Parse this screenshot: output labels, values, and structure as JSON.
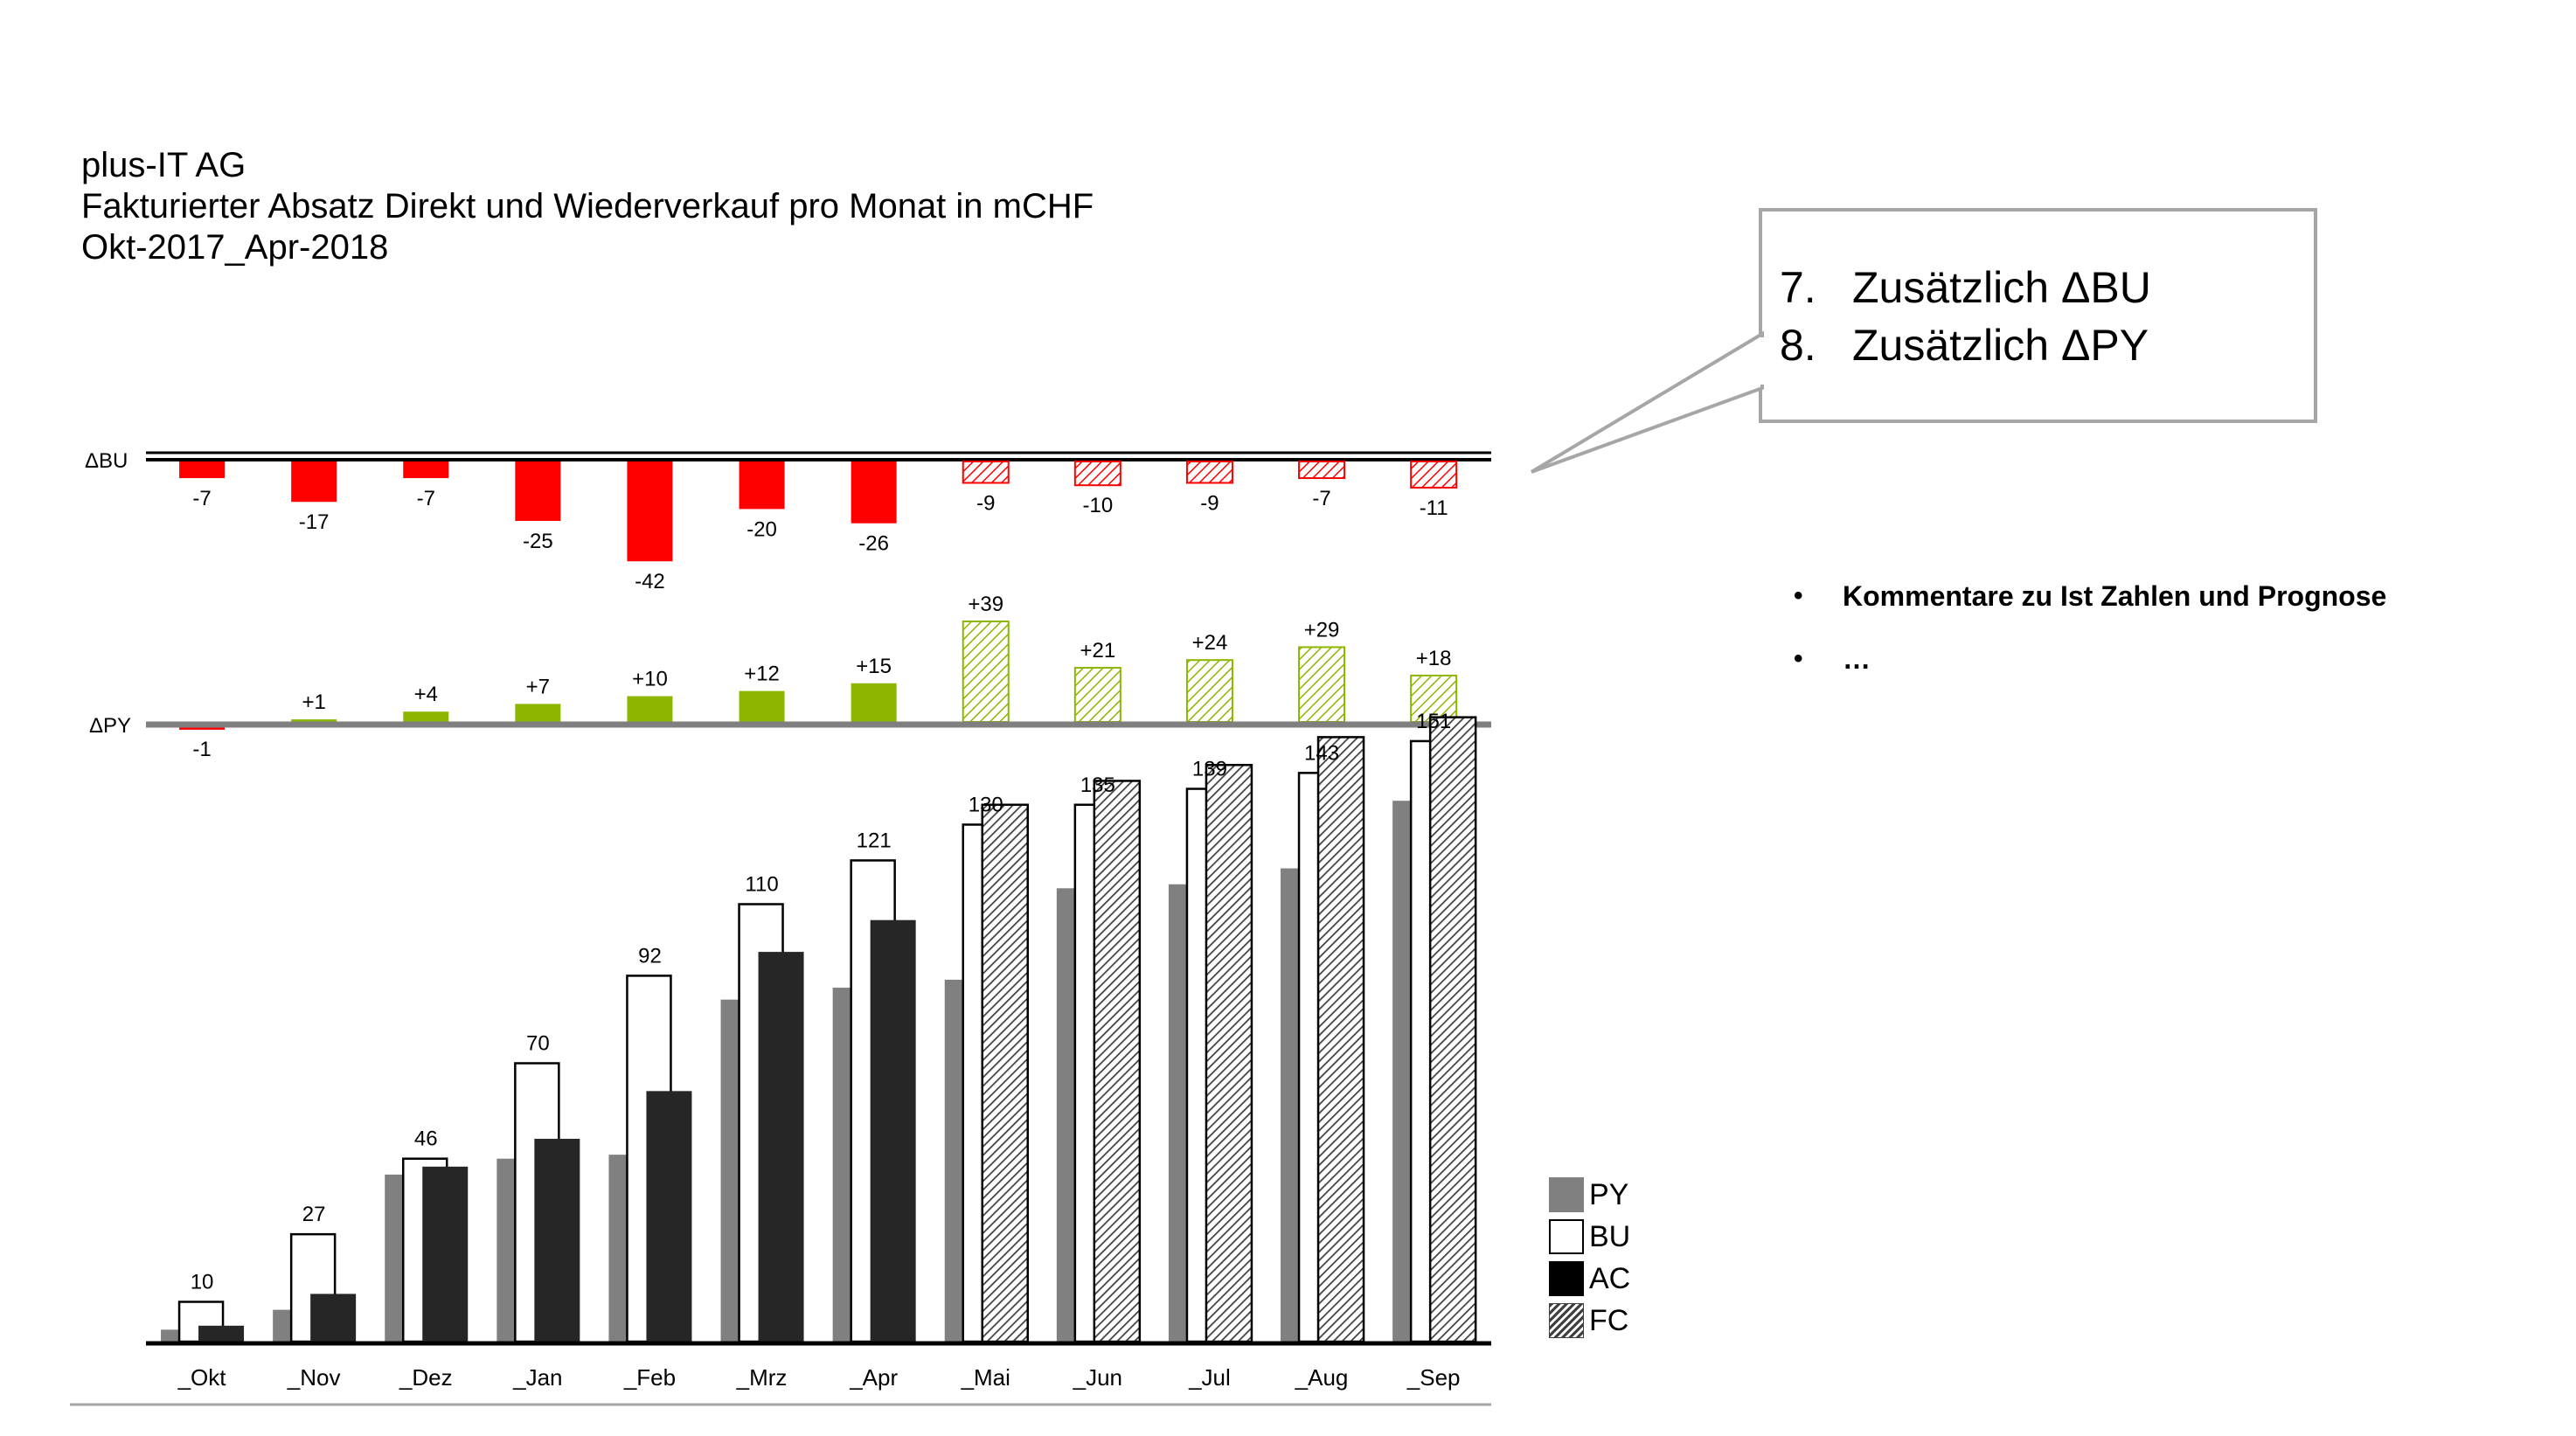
{
  "header": {
    "company": "plus-IT AG",
    "title_main": "Fakturierter Absatz Direkt und Wiederverkauf pro Monat",
    "title_unit": " in mCHF",
    "period": "Okt-2017_Apr-2018"
  },
  "callout": {
    "items": [
      {
        "num": "7.",
        "text": "Zusätzlich ΔBU"
      },
      {
        "num": "8.",
        "text": "Zusätzlich ΔPY"
      }
    ]
  },
  "comments": {
    "items": [
      {
        "bullet": "•",
        "text": "Kommentare zu Ist Zahlen und Prognose"
      },
      {
        "bullet": "•",
        "text": "…"
      }
    ]
  },
  "legend": [
    {
      "label": "PY",
      "style": "solid",
      "color": "#808080"
    },
    {
      "label": "BU",
      "style": "outline",
      "color": "#ffffff"
    },
    {
      "label": "AC",
      "style": "solid",
      "color": "#000000"
    },
    {
      "label": "FC",
      "style": "hatched",
      "color": "#404040"
    }
  ],
  "colors": {
    "negative": "#ff0000",
    "positive": "#8db600",
    "py": "#808080",
    "ac": "#262626",
    "fc_hatch": "#404040",
    "axis_gray": "#7f7f7f",
    "callout_border": "#a6a6a6"
  },
  "chart_data": [
    {
      "type": "bar",
      "id": "delta_bu",
      "axis_label": "ΔBU",
      "categories": [
        "_Okt",
        "_Nov",
        "_Dez",
        "_Jan",
        "_Feb",
        "_Mrz",
        "_Apr",
        "_Mai",
        "_Jun",
        "_Jul",
        "_Aug",
        "_Sep"
      ],
      "values": [
        -7,
        -17,
        -7,
        -25,
        -42,
        -20,
        -26,
        -9,
        -10,
        -9,
        -7,
        -11
      ],
      "labels": [
        "-7",
        "-17",
        "-7",
        "-25",
        "-42",
        "-20",
        "-26",
        "-9",
        "-10",
        "-9",
        "-7",
        "-11"
      ],
      "forecast_from_index": 7
    },
    {
      "type": "bar",
      "id": "delta_py",
      "axis_label": "ΔPY",
      "categories": [
        "_Okt",
        "_Nov",
        "_Dez",
        "_Jan",
        "_Feb",
        "_Mrz",
        "_Apr",
        "_Mai",
        "_Jun",
        "_Jul",
        "_Aug",
        "_Sep"
      ],
      "values": [
        -1,
        1,
        4,
        7,
        10,
        12,
        15,
        39,
        21,
        24,
        29,
        18
      ],
      "labels": [
        "-1",
        "+1",
        "+4",
        "+7",
        "+10",
        "+12",
        "+15",
        "+39",
        "+21",
        "+24",
        "+29",
        "+18"
      ],
      "forecast_from_index": 7
    },
    {
      "type": "bar",
      "id": "cumulative",
      "categories": [
        "_Okt",
        "_Nov",
        "_Dez",
        "_Jan",
        "_Feb",
        "_Mrz",
        "_Apr",
        "_Mai",
        "_Jun",
        "_Jul",
        "_Aug",
        "_Sep"
      ],
      "series": [
        {
          "name": "PY",
          "values": [
            3,
            8,
            42,
            46,
            47,
            86,
            89,
            91,
            114,
            115,
            119,
            136
          ]
        },
        {
          "name": "BU",
          "values": [
            10,
            27,
            46,
            70,
            92,
            110,
            121,
            130,
            135,
            139,
            143,
            151
          ]
        },
        {
          "name": "AC",
          "values": [
            4,
            12,
            44,
            51,
            63,
            98,
            106,
            null,
            null,
            null,
            null,
            null
          ]
        },
        {
          "name": "FC",
          "values": [
            null,
            null,
            null,
            null,
            null,
            null,
            null,
            135,
            141,
            145,
            152,
            157
          ]
        }
      ],
      "data_labels": [
        "10",
        "27",
        "46",
        "70",
        "92",
        "110",
        "121",
        "130",
        "135",
        "139",
        "143",
        "151"
      ],
      "forecast_from_index": 7
    }
  ]
}
